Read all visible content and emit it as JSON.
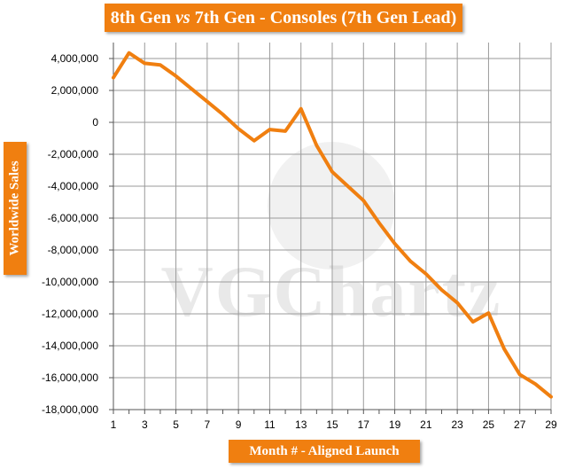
{
  "watermark": "VGChartz",
  "colors": {
    "line": "#f07f10",
    "label_bg": "#f07f10",
    "label_text": "#ffffff",
    "grid": "#9a9a9a"
  },
  "chart_data": {
    "type": "line",
    "title": "8th Gen vs 7th Gen - Consoles (7th Gen Lead)",
    "xlabel": "Month # - Aligned Launch",
    "ylabel": "Worldwide Sales",
    "x": [
      1,
      2,
      3,
      4,
      5,
      6,
      7,
      8,
      9,
      10,
      11,
      12,
      13,
      14,
      15,
      16,
      17,
      18,
      19,
      20,
      21,
      22,
      23,
      24,
      25,
      26,
      27,
      28,
      29
    ],
    "series": [
      {
        "values": [
          2800000,
          4350000,
          3700000,
          3600000,
          2900000,
          2100000,
          1300000,
          500000,
          -400000,
          -1150000,
          -450000,
          -550000,
          850000,
          -1450000,
          -3100000,
          -4000000,
          -4900000,
          -6300000,
          -7600000,
          -8700000,
          -9500000,
          -10500000,
          -11300000,
          -12500000,
          -11950000,
          -14200000,
          -15800000,
          -16400000,
          -17200000
        ],
        "color": "#f07f10"
      }
    ],
    "xlim": [
      1,
      29
    ],
    "ylim": [
      -18000000,
      5000000
    ],
    "x_ticks": [
      "1",
      "3",
      "5",
      "7",
      "9",
      "11",
      "13",
      "15",
      "17",
      "19",
      "21",
      "23",
      "25",
      "27",
      "29"
    ],
    "y_ticks": [
      "4,000,000",
      "2,000,000",
      "0",
      "-2,000,000",
      "-4,000,000",
      "-6,000,000",
      "-8,000,000",
      "-10,000,000",
      "-12,000,000",
      "-14,000,000",
      "-16,000,000",
      "-18,000,000"
    ],
    "grid": true,
    "legend": "none"
  }
}
